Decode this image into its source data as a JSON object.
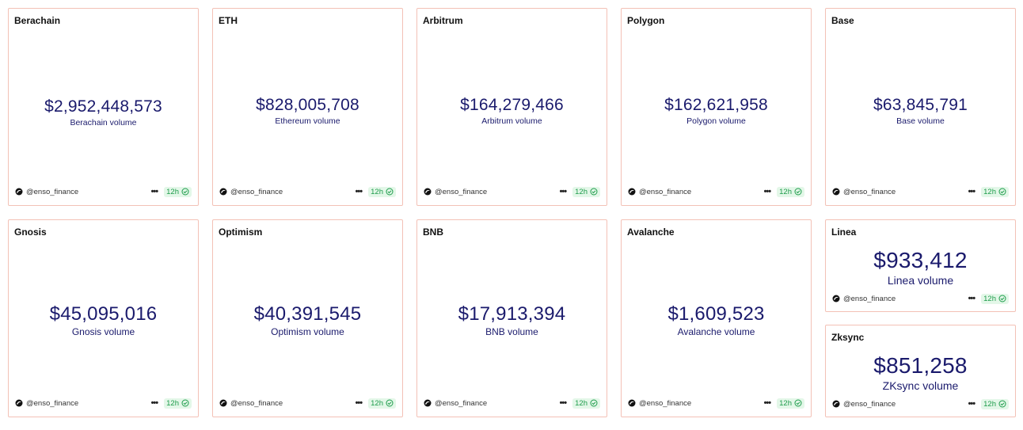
{
  "cards": [
    {
      "title": "Berachain",
      "value": "$2,952,448,573",
      "label": "Berachain volume",
      "author": "@enso_finance",
      "age": "12h"
    },
    {
      "title": "ETH",
      "value": "$828,005,708",
      "label": "Ethereum volume",
      "author": "@enso_finance",
      "age": "12h"
    },
    {
      "title": "Arbitrum",
      "value": "$164,279,466",
      "label": "Arbitrum volume",
      "author": "@enso_finance",
      "age": "12h"
    },
    {
      "title": "Polygon",
      "value": "$162,621,958",
      "label": "Polygon volume",
      "author": "@enso_finance",
      "age": "12h"
    },
    {
      "title": "Base",
      "value": "$63,845,791",
      "label": "Base volume",
      "author": "@enso_finance",
      "age": "12h"
    },
    {
      "title": "Gnosis",
      "value": "$45,095,016",
      "label": "Gnosis volume",
      "author": "@enso_finance",
      "age": "12h"
    },
    {
      "title": "Optimism",
      "value": "$40,391,545",
      "label": "Optimism volume",
      "author": "@enso_finance",
      "age": "12h"
    },
    {
      "title": "BNB",
      "value": "$17,913,394",
      "label": "BNB volume",
      "author": "@enso_finance",
      "age": "12h"
    },
    {
      "title": "Avalanche",
      "value": "$1,609,523",
      "label": "Avalanche volume",
      "author": "@enso_finance",
      "age": "12h"
    },
    {
      "title": "Linea",
      "value": "$933,412",
      "label": "Linea volume",
      "author": "@enso_finance",
      "age": "12h"
    },
    {
      "title": "Zksync",
      "value": "$851,258",
      "label": "ZKsync volume",
      "author": "@enso_finance",
      "age": "12h"
    }
  ],
  "colors": {
    "border": "#f3c1b6",
    "value_text": "#1a1a6c",
    "badge_bg": "#e3f7e8",
    "badge_text": "#1f9d4c"
  },
  "icons": {
    "avatar": "enso-logo-icon",
    "more": "more-dots-icon",
    "status": "check-circle-icon"
  }
}
